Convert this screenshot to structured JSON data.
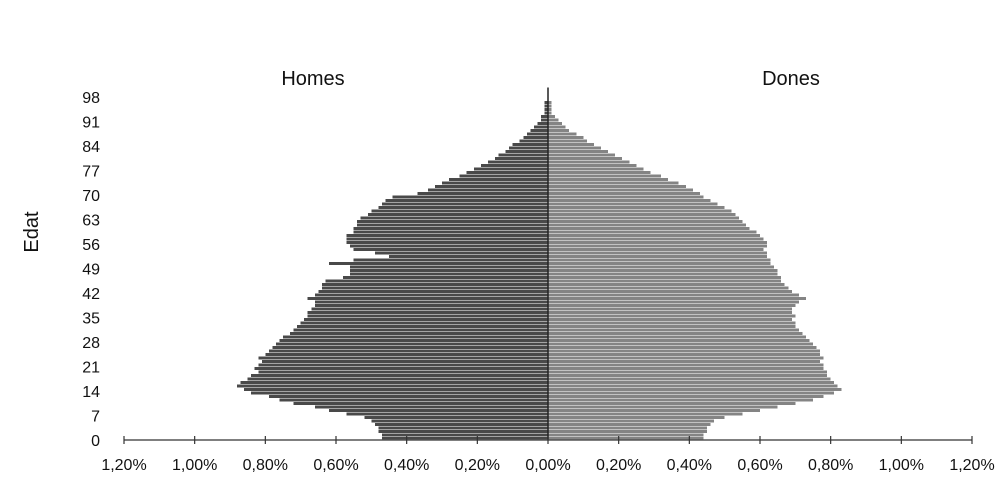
{
  "chart_data": {
    "type": "bar",
    "orientation": "horizontal",
    "variant": "population-pyramid",
    "title": "",
    "ylabel": "Edat",
    "xlabel": "",
    "group_labels": {
      "left": "Homes",
      "right": "Dones"
    },
    "y_ticks": [
      "0",
      "7",
      "14",
      "21",
      "28",
      "35",
      "42",
      "49",
      "56",
      "63",
      "70",
      "77",
      "84",
      "91",
      "98"
    ],
    "x_ticks": [
      "1,20%",
      "1,00%",
      "0,80%",
      "0,60%",
      "0,40%",
      "0,20%",
      "0,00%",
      "0,20%",
      "0,40%",
      "0,60%",
      "0,80%",
      "1,00%",
      "1,20%"
    ],
    "xlim": [
      -1.2,
      1.2
    ],
    "ylim": [
      0,
      100
    ],
    "unit": "%",
    "colors": {
      "homes": "#3a3a3a",
      "dones": "#6e6e6e",
      "axis": "#555555"
    },
    "series": [
      {
        "name": "Homes",
        "ages": [
          0,
          1,
          2,
          3,
          4,
          5,
          6,
          7,
          8,
          9,
          10,
          11,
          12,
          13,
          14,
          15,
          16,
          17,
          18,
          19,
          20,
          21,
          22,
          23,
          24,
          25,
          26,
          27,
          28,
          29,
          30,
          31,
          32,
          33,
          34,
          35,
          36,
          37,
          38,
          39,
          40,
          41,
          42,
          43,
          44,
          45,
          46,
          47,
          48,
          49,
          50,
          51,
          52,
          53,
          54,
          55,
          56,
          57,
          58,
          59,
          60,
          61,
          62,
          63,
          64,
          65,
          66,
          67,
          68,
          69,
          70,
          71,
          72,
          73,
          74,
          75,
          76,
          77,
          78,
          79,
          80,
          81,
          82,
          83,
          84,
          85,
          86,
          87,
          88,
          89,
          90,
          91,
          92,
          93,
          94,
          95,
          96,
          97,
          98,
          99
        ],
        "values": [
          0.47,
          0.47,
          0.48,
          0.48,
          0.49,
          0.5,
          0.52,
          0.57,
          0.62,
          0.66,
          0.72,
          0.76,
          0.79,
          0.84,
          0.86,
          0.88,
          0.87,
          0.85,
          0.84,
          0.82,
          0.83,
          0.82,
          0.81,
          0.82,
          0.8,
          0.79,
          0.78,
          0.77,
          0.76,
          0.75,
          0.73,
          0.72,
          0.71,
          0.7,
          0.69,
          0.68,
          0.68,
          0.67,
          0.66,
          0.66,
          0.68,
          0.66,
          0.65,
          0.64,
          0.64,
          0.63,
          0.58,
          0.56,
          0.56,
          0.56,
          0.62,
          0.55,
          0.45,
          0.49,
          0.55,
          0.56,
          0.57,
          0.57,
          0.57,
          0.55,
          0.55,
          0.54,
          0.54,
          0.53,
          0.51,
          0.5,
          0.48,
          0.47,
          0.46,
          0.44,
          0.37,
          0.34,
          0.32,
          0.3,
          0.28,
          0.25,
          0.23,
          0.21,
          0.19,
          0.17,
          0.15,
          0.14,
          0.12,
          0.11,
          0.1,
          0.08,
          0.07,
          0.06,
          0.05,
          0.04,
          0.03,
          0.02,
          0.02,
          0.01,
          0.01,
          0.01,
          0.01,
          0.0,
          0.0,
          0.0
        ]
      },
      {
        "name": "Dones",
        "ages": [
          0,
          1,
          2,
          3,
          4,
          5,
          6,
          7,
          8,
          9,
          10,
          11,
          12,
          13,
          14,
          15,
          16,
          17,
          18,
          19,
          20,
          21,
          22,
          23,
          24,
          25,
          26,
          27,
          28,
          29,
          30,
          31,
          32,
          33,
          34,
          35,
          36,
          37,
          38,
          39,
          40,
          41,
          42,
          43,
          44,
          45,
          46,
          47,
          48,
          49,
          50,
          51,
          52,
          53,
          54,
          55,
          56,
          57,
          58,
          59,
          60,
          61,
          62,
          63,
          64,
          65,
          66,
          67,
          68,
          69,
          70,
          71,
          72,
          73,
          74,
          75,
          76,
          77,
          78,
          79,
          80,
          81,
          82,
          83,
          84,
          85,
          86,
          87,
          88,
          89,
          90,
          91,
          92,
          93,
          94,
          95,
          96,
          97,
          98,
          99
        ],
        "values": [
          0.44,
          0.44,
          0.45,
          0.45,
          0.46,
          0.47,
          0.5,
          0.55,
          0.6,
          0.65,
          0.7,
          0.75,
          0.78,
          0.81,
          0.83,
          0.82,
          0.81,
          0.8,
          0.79,
          0.79,
          0.78,
          0.78,
          0.77,
          0.78,
          0.77,
          0.77,
          0.76,
          0.75,
          0.74,
          0.73,
          0.72,
          0.71,
          0.7,
          0.7,
          0.69,
          0.7,
          0.69,
          0.69,
          0.7,
          0.71,
          0.73,
          0.71,
          0.69,
          0.68,
          0.67,
          0.66,
          0.66,
          0.65,
          0.65,
          0.64,
          0.63,
          0.63,
          0.62,
          0.62,
          0.61,
          0.62,
          0.62,
          0.61,
          0.6,
          0.59,
          0.57,
          0.56,
          0.55,
          0.54,
          0.53,
          0.52,
          0.5,
          0.48,
          0.46,
          0.44,
          0.43,
          0.41,
          0.39,
          0.37,
          0.34,
          0.32,
          0.29,
          0.27,
          0.25,
          0.23,
          0.21,
          0.19,
          0.17,
          0.15,
          0.13,
          0.11,
          0.1,
          0.08,
          0.06,
          0.05,
          0.04,
          0.03,
          0.02,
          0.01,
          0.01,
          0.01,
          0.01,
          0.0,
          0.0,
          0.0
        ]
      }
    ],
    "grid": false,
    "legend": "none"
  }
}
